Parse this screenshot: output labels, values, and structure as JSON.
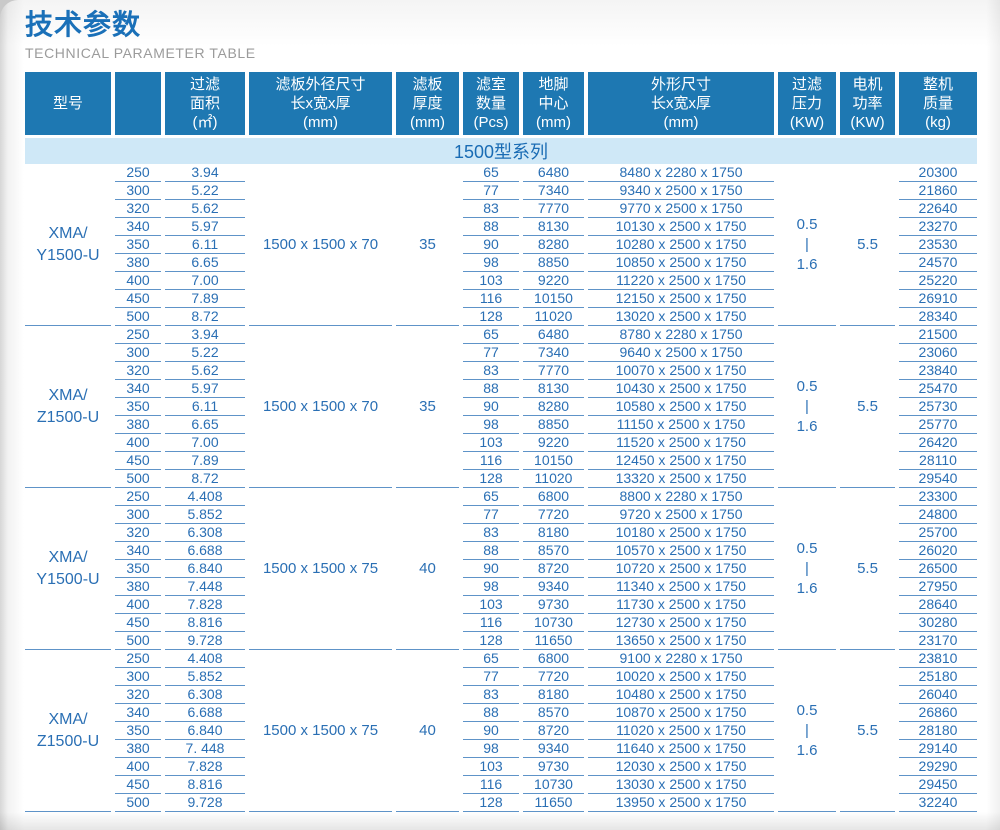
{
  "colors": {
    "header_bg": "#1e78b2",
    "band_bg": "#cfe8f7",
    "band_text": "#1a6cb4",
    "data_text": "#2a6fb4",
    "line_blue": "#5e93c8",
    "title_blue": "#1a70b8",
    "subtitle_gray": "#9b9b9b"
  },
  "page": {
    "title": "技术参数",
    "subtitle": "TECHNICAL PARAMETER TABLE"
  },
  "table": {
    "headers": [
      "型号",
      "",
      "过滤\n面积\n(㎡)",
      "滤板外径尺寸\n长x宽x厚\n(mm)",
      "滤板\n厚度\n(mm)",
      "滤室\n数量\n(Pcs)",
      "地脚\n中心\n(mm)",
      "外形尺寸\n长x宽x厚\n(mm)",
      "过滤\n压力\n(KW)",
      "电机\n功率\n(KW)",
      "整机\n质量\n(kg)"
    ],
    "series_label": "1500型系列",
    "groups": [
      {
        "model": "XMA/\nY1500-U",
        "plate_size": "1500 x 1500 x 70",
        "plate_thickness": "35",
        "pressure": "0.5\n|\n1.6",
        "motor_power": "5.5",
        "rows": [
          {
            "spec": "250",
            "area": "3.94",
            "chambers": "65",
            "foot_center": "6480",
            "overall_size": "8480 x 2280 x 1750",
            "weight": "20300"
          },
          {
            "spec": "300",
            "area": "5.22",
            "chambers": "77",
            "foot_center": "7340",
            "overall_size": "9340 x 2500 x 1750",
            "weight": "21860"
          },
          {
            "spec": "320",
            "area": "5.62",
            "chambers": "83",
            "foot_center": "7770",
            "overall_size": "9770 x 2500 x 1750",
            "weight": "22640"
          },
          {
            "spec": "340",
            "area": "5.97",
            "chambers": "88",
            "foot_center": "8130",
            "overall_size": "10130 x 2500 x 1750",
            "weight": "23270"
          },
          {
            "spec": "350",
            "area": "6.11",
            "chambers": "90",
            "foot_center": "8280",
            "overall_size": "10280 x 2500 x 1750",
            "weight": "23530"
          },
          {
            "spec": "380",
            "area": "6.65",
            "chambers": "98",
            "foot_center": "8850",
            "overall_size": "10850 x 2500 x 1750",
            "weight": "24570"
          },
          {
            "spec": "400",
            "area": "7.00",
            "chambers": "103",
            "foot_center": "9220",
            "overall_size": "11220 x 2500 x 1750",
            "weight": "25220"
          },
          {
            "spec": "450",
            "area": "7.89",
            "chambers": "116",
            "foot_center": "10150",
            "overall_size": "12150 x 2500 x 1750",
            "weight": "26910"
          },
          {
            "spec": "500",
            "area": "8.72",
            "chambers": "128",
            "foot_center": "11020",
            "overall_size": "13020 x 2500 x 1750",
            "weight": "28340"
          }
        ]
      },
      {
        "model": "XMA/\nZ1500-U",
        "plate_size": "1500 x 1500 x 70",
        "plate_thickness": "35",
        "pressure": "0.5\n|\n1.6",
        "motor_power": "5.5",
        "rows": [
          {
            "spec": "250",
            "area": "3.94",
            "chambers": "65",
            "foot_center": "6480",
            "overall_size": "8780 x 2280 x 1750",
            "weight": "21500"
          },
          {
            "spec": "300",
            "area": "5.22",
            "chambers": "77",
            "foot_center": "7340",
            "overall_size": "9640 x 2500 x 1750",
            "weight": "23060"
          },
          {
            "spec": "320",
            "area": "5.62",
            "chambers": "83",
            "foot_center": "7770",
            "overall_size": "10070 x 2500 x 1750",
            "weight": "23840"
          },
          {
            "spec": "340",
            "area": "5.97",
            "chambers": "88",
            "foot_center": "8130",
            "overall_size": "10430 x 2500 x 1750",
            "weight": "25470"
          },
          {
            "spec": "350",
            "area": "6.11",
            "chambers": "90",
            "foot_center": "8280",
            "overall_size": "10580 x 2500 x 1750",
            "weight": "25730"
          },
          {
            "spec": "380",
            "area": "6.65",
            "chambers": "98",
            "foot_center": "8850",
            "overall_size": "11150 x 2500 x 1750",
            "weight": "25770"
          },
          {
            "spec": "400",
            "area": "7.00",
            "chambers": "103",
            "foot_center": "9220",
            "overall_size": "11520 x 2500 x 1750",
            "weight": "26420"
          },
          {
            "spec": "450",
            "area": "7.89",
            "chambers": "116",
            "foot_center": "10150",
            "overall_size": "12450 x 2500 x 1750",
            "weight": "28110"
          },
          {
            "spec": "500",
            "area": "8.72",
            "chambers": "128",
            "foot_center": "11020",
            "overall_size": "13320 x 2500 x 1750",
            "weight": "29540"
          }
        ]
      },
      {
        "model": "XMA/\nY1500-U",
        "plate_size": "1500 x 1500 x 75",
        "plate_thickness": "40",
        "pressure": "0.5\n|\n1.6",
        "motor_power": "5.5",
        "rows": [
          {
            "spec": "250",
            "area": "4.408",
            "chambers": "65",
            "foot_center": "6800",
            "overall_size": "8800 x 2280 x 1750",
            "weight": "23300"
          },
          {
            "spec": "300",
            "area": "5.852",
            "chambers": "77",
            "foot_center": "7720",
            "overall_size": "9720 x 2500 x 1750",
            "weight": "24800"
          },
          {
            "spec": "320",
            "area": "6.308",
            "chambers": "83",
            "foot_center": "8180",
            "overall_size": "10180 x 2500 x 1750",
            "weight": "25700"
          },
          {
            "spec": "340",
            "area": "6.688",
            "chambers": "88",
            "foot_center": "8570",
            "overall_size": "10570 x 2500 x 1750",
            "weight": "26020"
          },
          {
            "spec": "350",
            "area": "6.840",
            "chambers": "90",
            "foot_center": "8720",
            "overall_size": "10720 x 2500 x 1750",
            "weight": "26500"
          },
          {
            "spec": "380",
            "area": "7.448",
            "chambers": "98",
            "foot_center": "9340",
            "overall_size": "11340 x 2500 x 1750",
            "weight": "27950"
          },
          {
            "spec": "400",
            "area": "7.828",
            "chambers": "103",
            "foot_center": "9730",
            "overall_size": "11730 x 2500 x 1750",
            "weight": "28640"
          },
          {
            "spec": "450",
            "area": "8.816",
            "chambers": "116",
            "foot_center": "10730",
            "overall_size": "12730 x 2500 x 1750",
            "weight": "30280"
          },
          {
            "spec": "500",
            "area": "9.728",
            "chambers": "128",
            "foot_center": "11650",
            "overall_size": "13650 x 2500 x 1750",
            "weight": "23170"
          }
        ]
      },
      {
        "model": "XMA/\nZ1500-U",
        "plate_size": "1500 x 1500 x 75",
        "plate_thickness": "40",
        "pressure": "0.5\n|\n1.6",
        "motor_power": "5.5",
        "rows": [
          {
            "spec": "250",
            "area": "4.408",
            "chambers": "65",
            "foot_center": "6800",
            "overall_size": "9100 x 2280 x 1750",
            "weight": "23810"
          },
          {
            "spec": "300",
            "area": "5.852",
            "chambers": "77",
            "foot_center": "7720",
            "overall_size": "10020 x 2500 x 1750",
            "weight": "25180"
          },
          {
            "spec": "320",
            "area": "6.308",
            "chambers": "83",
            "foot_center": "8180",
            "overall_size": "10480 x 2500 x 1750",
            "weight": "26040"
          },
          {
            "spec": "340",
            "area": "6.688",
            "chambers": "88",
            "foot_center": "8570",
            "overall_size": "10870 x 2500 x 1750",
            "weight": "26860"
          },
          {
            "spec": "350",
            "area": "6.840",
            "chambers": "90",
            "foot_center": "8720",
            "overall_size": "11020 x 2500 x 1750",
            "weight": "28180"
          },
          {
            "spec": "380",
            "area": "7. 448",
            "chambers": "98",
            "foot_center": "9340",
            "overall_size": "11640 x 2500 x 1750",
            "weight": "29140"
          },
          {
            "spec": "400",
            "area": "7.828",
            "chambers": "103",
            "foot_center": "9730",
            "overall_size": "12030 x 2500 x 1750",
            "weight": "29290"
          },
          {
            "spec": "450",
            "area": "8.816",
            "chambers": "116",
            "foot_center": "10730",
            "overall_size": "13030 x 2500 x 1750",
            "weight": "29450"
          },
          {
            "spec": "500",
            "area": "9.728",
            "chambers": "128",
            "foot_center": "11650",
            "overall_size": "13950 x 2500 x 1750",
            "weight": "32240"
          }
        ]
      }
    ]
  }
}
